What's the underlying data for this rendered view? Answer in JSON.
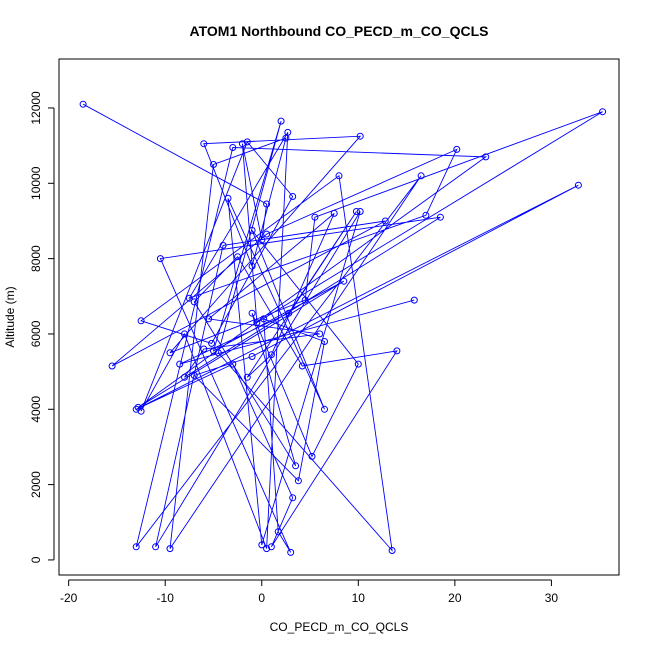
{
  "chart_data": {
    "type": "line",
    "title": "ATOM1 Northbound CO_PECD_m_CO_QCLS",
    "xlabel": "CO_PECD_m_CO_QCLS",
    "ylabel": "Altitude (m)",
    "xlim": [
      -21,
      37
    ],
    "ylim": [
      -400,
      13300
    ],
    "xticks": [
      -20,
      -10,
      0,
      10,
      20,
      30
    ],
    "yticks": [
      0,
      2000,
      4000,
      6000,
      8000,
      10000,
      12000
    ],
    "line_color": "#0000ff",
    "marker": "open-circle",
    "grid": false,
    "series": [
      {
        "x": [
          -18.5,
          0.5,
          0.0,
          -2.0,
          -0.5,
          35.3,
          5.5,
          4.5,
          -9.5,
          10.2,
          -6.0,
          -1.0,
          2.5,
          -5.0,
          -9.5,
          16.5,
          -13.0,
          -3.0,
          23.2,
          -12.8,
          8.5,
          -5.0,
          2.0,
          -4.5,
          13.5,
          8.0,
          -12.5,
          -5.2,
          3.2,
          -1.5,
          -12.5,
          -8.0,
          0.5,
          2.7,
          -7.5,
          17.0,
          20.2,
          0.5,
          -15.5,
          12.8,
          -4.0,
          -11.0,
          10.2,
          0.0,
          -3.5,
          6.5,
          -1.0,
          10.0,
          5.2,
          -1.0,
          3.5,
          -7.0,
          -2.5,
          4.2,
          14.0,
          1.0,
          3.2,
          -3.0,
          -13.0,
          32.8,
          -1.0,
          -7.0,
          3.8,
          6.5,
          0.2,
          1.7,
          3.0,
          -10.5,
          18.5,
          -8.0,
          -6.0,
          6.0,
          -5.5,
          7.5,
          1.0,
          -1.5,
          9.8,
          2.8,
          -8.5,
          15.8
        ],
        "y": [
          12100,
          9450,
          8500,
          11050,
          6300,
          11900,
          9100,
          6900,
          5500,
          11250,
          11050,
          7800,
          11200,
          10500,
          300,
          10200,
          350,
          10950,
          10700,
          4050,
          7400,
          5550,
          11650,
          5500,
          250,
          10200,
          6350,
          5750,
          9650,
          11100,
          3950,
          6000,
          300,
          11350,
          6950,
          9150,
          10900,
          8650,
          5150,
          9000,
          8350,
          350,
          9250,
          400,
          9600,
          4000,
          8750,
          5200,
          2750,
          6550,
          2500,
          6850,
          8050,
          5150,
          5550,
          350,
          1650,
          5200,
          4000,
          9950,
          5400,
          4900,
          2100,
          5800,
          6400,
          750,
          200,
          8000,
          9100,
          4850,
          5600,
          6000,
          6400,
          9200,
          5450,
          4850,
          9250,
          6550,
          5200,
          6900
        ]
      }
    ]
  }
}
